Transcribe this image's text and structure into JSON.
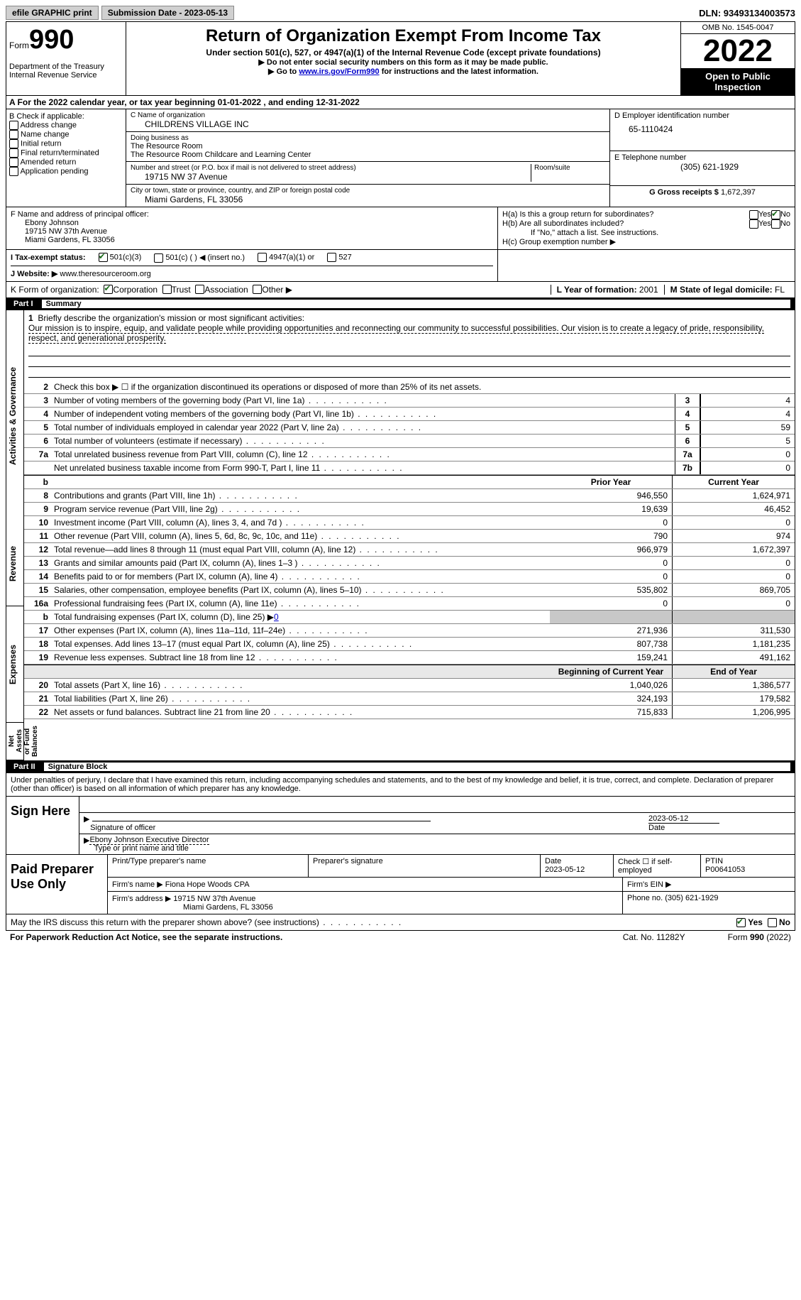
{
  "topbar": {
    "efile": "efile GRAPHIC print",
    "submission": "Submission Date - 2023-05-13",
    "dln": "DLN: 93493134003573"
  },
  "header": {
    "form_word": "Form",
    "form_num": "990",
    "title": "Return of Organization Exempt From Income Tax",
    "subtitle": "Under section 501(c), 527, or 4947(a)(1) of the Internal Revenue Code (except private foundations)",
    "note1": "▶ Do not enter social security numbers on this form as it may be made public.",
    "note2_pre": "▶ Go to ",
    "note2_link": "www.irs.gov/Form990",
    "note2_post": " for instructions and the latest information.",
    "dept": "Department of the Treasury",
    "irs": "Internal Revenue Service",
    "omb": "OMB No. 1545-0047",
    "year": "2022",
    "open": "Open to Public Inspection"
  },
  "row_a": {
    "text_pre": "A For the 2022 calendar year, or tax year beginning ",
    "begin": "01-01-2022",
    "mid": "   , and ending ",
    "end": "12-31-2022"
  },
  "col_b": {
    "header": "B Check if applicable:",
    "opts": [
      "Address change",
      "Name change",
      "Initial return",
      "Final return/terminated",
      "Amended return",
      "Application pending"
    ]
  },
  "col_c": {
    "name_label": "C Name of organization",
    "name": "CHILDRENS VILLAGE INC",
    "dba_label": "Doing business as",
    "dba1": "The Resource Room",
    "dba2": "The Resource Room Childcare and Learning Center",
    "addr_label": "Number and street (or P.O. box if mail is not delivered to street address)",
    "room_label": "Room/suite",
    "addr": "19715 NW 37 Avenue",
    "city_label": "City or town, state or province, country, and ZIP or foreign postal code",
    "city": "Miami Gardens, FL  33056"
  },
  "col_de": {
    "d_label": "D Employer identification number",
    "d_val": "65-1110424",
    "e_label": "E Telephone number",
    "e_val": "(305) 621-1929",
    "g_label": "G Gross receipts $ ",
    "g_val": "1,672,397"
  },
  "col_f": {
    "label": "F  Name and address of principal officer:",
    "name": "Ebony Johnson",
    "addr1": "19715 NW 37th Avenue",
    "addr2": "Miami Gardens, FL  33056"
  },
  "col_h": {
    "ha": "H(a)  Is this a group return for subordinates?",
    "hb": "H(b)  Are all subordinates included?",
    "hb_note": "If \"No,\" attach a list. See instructions.",
    "hc": "H(c)  Group exemption number ▶",
    "yes": "Yes",
    "no": "No"
  },
  "row_i": {
    "label": "I   Tax-exempt status:",
    "opt1": "501(c)(3)",
    "opt2": "501(c) (  ) ◀ (insert no.)",
    "opt3": "4947(a)(1) or",
    "opt4": "527"
  },
  "row_j": {
    "label": "J   Website: ▶ ",
    "val": "www.theresourceroom.org"
  },
  "row_k": {
    "label": "K Form of organization:",
    "opts": [
      "Corporation",
      "Trust",
      "Association",
      "Other ▶"
    ],
    "l_label": "L Year of formation: ",
    "l_val": "2001",
    "m_label": "M State of legal domicile: ",
    "m_val": "FL"
  },
  "part1": {
    "num": "Part I",
    "title": "Summary"
  },
  "mission": {
    "num": "1",
    "label": "Briefly describe the organization's mission or most significant activities:",
    "text": "Our mission is to inspire, equip, and validate people while providing opportunities and reconnecting our community to successful possibilities. Our vision is to create a legacy of pride, responsibility, respect, and generational prosperity."
  },
  "line2": {
    "num": "2",
    "text": "Check this box ▶ ☐  if the organization discontinued its operations or disposed of more than 25% of its net assets."
  },
  "side_labels": {
    "ag": "Activities & Governance",
    "rev": "Revenue",
    "exp": "Expenses",
    "net": "Net Assets or Fund Balances"
  },
  "simple_lines": [
    {
      "num": "3",
      "desc": "Number of voting members of the governing body (Part VI, line 1a)",
      "ln": "3",
      "val": "4"
    },
    {
      "num": "4",
      "desc": "Number of independent voting members of the governing body (Part VI, line 1b)",
      "ln": "4",
      "val": "4"
    },
    {
      "num": "5",
      "desc": "Total number of individuals employed in calendar year 2022 (Part V, line 2a)",
      "ln": "5",
      "val": "59"
    },
    {
      "num": "6",
      "desc": "Total number of volunteers (estimate if necessary)",
      "ln": "6",
      "val": "5"
    },
    {
      "num": "7a",
      "desc": "Total unrelated business revenue from Part VIII, column (C), line 12",
      "ln": "7a",
      "val": "0"
    },
    {
      "num": "",
      "desc": "Net unrelated business taxable income from Form 990-T, Part I, line 11",
      "ln": "7b",
      "val": "0"
    }
  ],
  "col_headers": {
    "prior": "Prior Year",
    "curr": "Current Year",
    "begin": "Beginning of Current Year",
    "end": "End of Year"
  },
  "revenue": [
    {
      "num": "8",
      "desc": "Contributions and grants (Part VIII, line 1h)",
      "prior": "946,550",
      "curr": "1,624,971"
    },
    {
      "num": "9",
      "desc": "Program service revenue (Part VIII, line 2g)",
      "prior": "19,639",
      "curr": "46,452"
    },
    {
      "num": "10",
      "desc": "Investment income (Part VIII, column (A), lines 3, 4, and 7d )",
      "prior": "0",
      "curr": "0"
    },
    {
      "num": "11",
      "desc": "Other revenue (Part VIII, column (A), lines 5, 6d, 8c, 9c, 10c, and 11e)",
      "prior": "790",
      "curr": "974"
    },
    {
      "num": "12",
      "desc": "Total revenue—add lines 8 through 11 (must equal Part VIII, column (A), line 12)",
      "prior": "966,979",
      "curr": "1,672,397"
    }
  ],
  "expenses": [
    {
      "num": "13",
      "desc": "Grants and similar amounts paid (Part IX, column (A), lines 1–3 )",
      "prior": "0",
      "curr": "0"
    },
    {
      "num": "14",
      "desc": "Benefits paid to or for members (Part IX, column (A), line 4)",
      "prior": "0",
      "curr": "0"
    },
    {
      "num": "15",
      "desc": "Salaries, other compensation, employee benefits (Part IX, column (A), lines 5–10)",
      "prior": "535,802",
      "curr": "869,705"
    },
    {
      "num": "16a",
      "desc": "Professional fundraising fees (Part IX, column (A), line 11e)",
      "prior": "0",
      "curr": "0"
    }
  ],
  "line16b": {
    "num": "b",
    "desc_pre": "Total fundraising expenses (Part IX, column (D), line 25) ▶",
    "val": "0"
  },
  "expenses2": [
    {
      "num": "17",
      "desc": "Other expenses (Part IX, column (A), lines 11a–11d, 11f–24e)",
      "prior": "271,936",
      "curr": "311,530"
    },
    {
      "num": "18",
      "desc": "Total expenses. Add lines 13–17 (must equal Part IX, column (A), line 25)",
      "prior": "807,738",
      "curr": "1,181,235"
    },
    {
      "num": "19",
      "desc": "Revenue less expenses. Subtract line 18 from line 12",
      "prior": "159,241",
      "curr": "491,162"
    }
  ],
  "netassets": [
    {
      "num": "20",
      "desc": "Total assets (Part X, line 16)",
      "prior": "1,040,026",
      "curr": "1,386,577"
    },
    {
      "num": "21",
      "desc": "Total liabilities (Part X, line 26)",
      "prior": "324,193",
      "curr": "179,582"
    },
    {
      "num": "22",
      "desc": "Net assets or fund balances. Subtract line 21 from line 20",
      "prior": "715,833",
      "curr": "1,206,995"
    }
  ],
  "part2": {
    "num": "Part II",
    "title": "Signature Block"
  },
  "penalty": "Under penalties of perjury, I declare that I have examined this return, including accompanying schedules and statements, and to the best of my knowledge and belief, it is true, correct, and complete. Declaration of preparer (other than officer) is based on all information of which preparer has any knowledge.",
  "sign": {
    "here": "Sign Here",
    "sig_label": "Signature of officer",
    "date_val": "2023-05-12",
    "date_label": "Date",
    "name": "Ebony Johnson  Executive Director",
    "name_label": "Type or print name and title"
  },
  "paid": {
    "title": "Paid Preparer Use Only",
    "print_label": "Print/Type preparer's name",
    "sig_label": "Preparer's signature",
    "date_label": "Date",
    "date_val": "2023-05-12",
    "check_label": "Check ☐ if self-employed",
    "ptin_label": "PTIN",
    "ptin_val": "P00641053",
    "firm_name_label": "Firm's name    ▶ ",
    "firm_name": "Fiona Hope Woods CPA",
    "firm_ein_label": "Firm's EIN ▶",
    "firm_addr_label": "Firm's address ▶ ",
    "firm_addr1": "19715 NW 37th Avenue",
    "firm_addr2": "Miami Gardens, FL  33056",
    "phone_label": "Phone no. ",
    "phone_val": "(305) 621-1929"
  },
  "discuss": {
    "text": "May the IRS discuss this return with the preparer shown above? (see instructions)",
    "yes": "Yes",
    "no": "No"
  },
  "footer": {
    "left": "For Paperwork Reduction Act Notice, see the separate instructions.",
    "mid": "Cat. No. 11282Y",
    "right": "Form 990 (2022)"
  }
}
